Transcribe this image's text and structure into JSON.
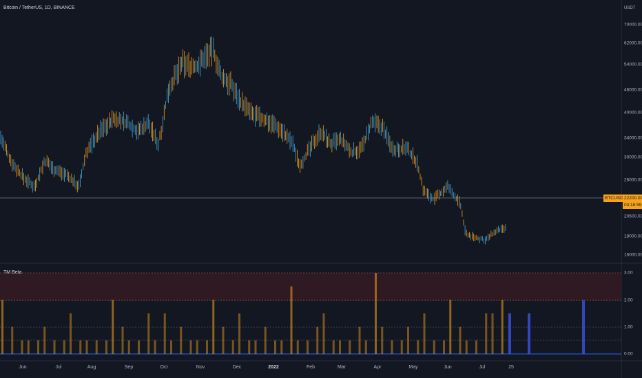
{
  "header": {
    "title": "Bitcoin / TetherUS, 1D, BINANCE",
    "currency": "USDT",
    "indicator_title": "TM Beta"
  },
  "price_axis": {
    "labels": [
      "70000.00",
      "62000.00",
      "54000.00",
      "46000.00",
      "40000.00",
      "34000.00",
      "30000.00",
      "26000.00",
      "20500.00",
      "18000.00",
      "16000.00"
    ]
  },
  "beta_axis": {
    "labels": [
      "3.00",
      "2.00",
      "1.00",
      "0.00"
    ]
  },
  "time_axis": {
    "labels": [
      "Jun",
      "Jul",
      "Aug",
      "Sep",
      "Oct",
      "Nov",
      "Dec",
      "2022",
      "Feb",
      "Mar",
      "Apr",
      "May",
      "Jun",
      "Jul",
      "25"
    ]
  },
  "last_price": {
    "symbol": "BTCUSDT",
    "price": "22200.00",
    "countdown": "03:18:59"
  },
  "colors": {
    "background": "#131722",
    "bar_orange": "#f7a21b",
    "bar_blue": "#3b4fd8",
    "candle_blue": "#4aa9d6",
    "zone": "#3a1c24"
  },
  "chart_data": [
    {
      "type": "line",
      "title": "Bitcoin / TetherUS, 1D, BINANCE",
      "y_unit": "USDT",
      "x": [
        "Jun",
        "Jul",
        "Aug",
        "Sep",
        "Oct",
        "Nov",
        "Dec",
        "2022",
        "Feb",
        "Mar",
        "Apr",
        "May",
        "Jun",
        "Jul"
      ],
      "values": [
        37000,
        33000,
        41000,
        47000,
        47000,
        61000,
        57000,
        47000,
        43000,
        38000,
        46000,
        40000,
        30000,
        20000
      ],
      "series": [
        {
          "name": "BTCUSDT",
          "values": [
            37000,
            33000,
            41000,
            47000,
            47000,
            61000,
            57000,
            47000,
            43000,
            38000,
            46000,
            40000,
            30000,
            20000
          ]
        }
      ],
      "ylim": [
        16000,
        72000
      ]
    },
    {
      "type": "bar",
      "title": "TM Beta",
      "ylim": [
        0,
        3
      ],
      "series": [
        {
          "name": "TM Beta",
          "values": [
            2,
            1,
            0.5,
            0.5,
            0.5,
            1,
            0.5,
            0.5,
            1.5,
            0.5,
            0.5,
            0.5,
            0.5,
            2,
            1,
            0.5,
            0.5,
            1.5,
            0.5,
            1.5,
            0.5,
            1,
            0.5,
            0.5,
            0.5,
            2,
            1,
            0.5,
            1.5,
            0.5,
            0.5,
            1,
            0.5,
            0.5,
            2.5,
            0.5,
            0.5,
            1,
            1.5,
            0.5,
            0.5,
            0.5,
            1,
            0.5,
            3,
            1,
            0.5,
            0.5,
            1,
            0.5,
            1.5,
            0.5,
            0.5,
            2,
            1,
            0.5,
            0.5,
            1.5,
            1.5,
            2
          ]
        }
      ]
    }
  ]
}
